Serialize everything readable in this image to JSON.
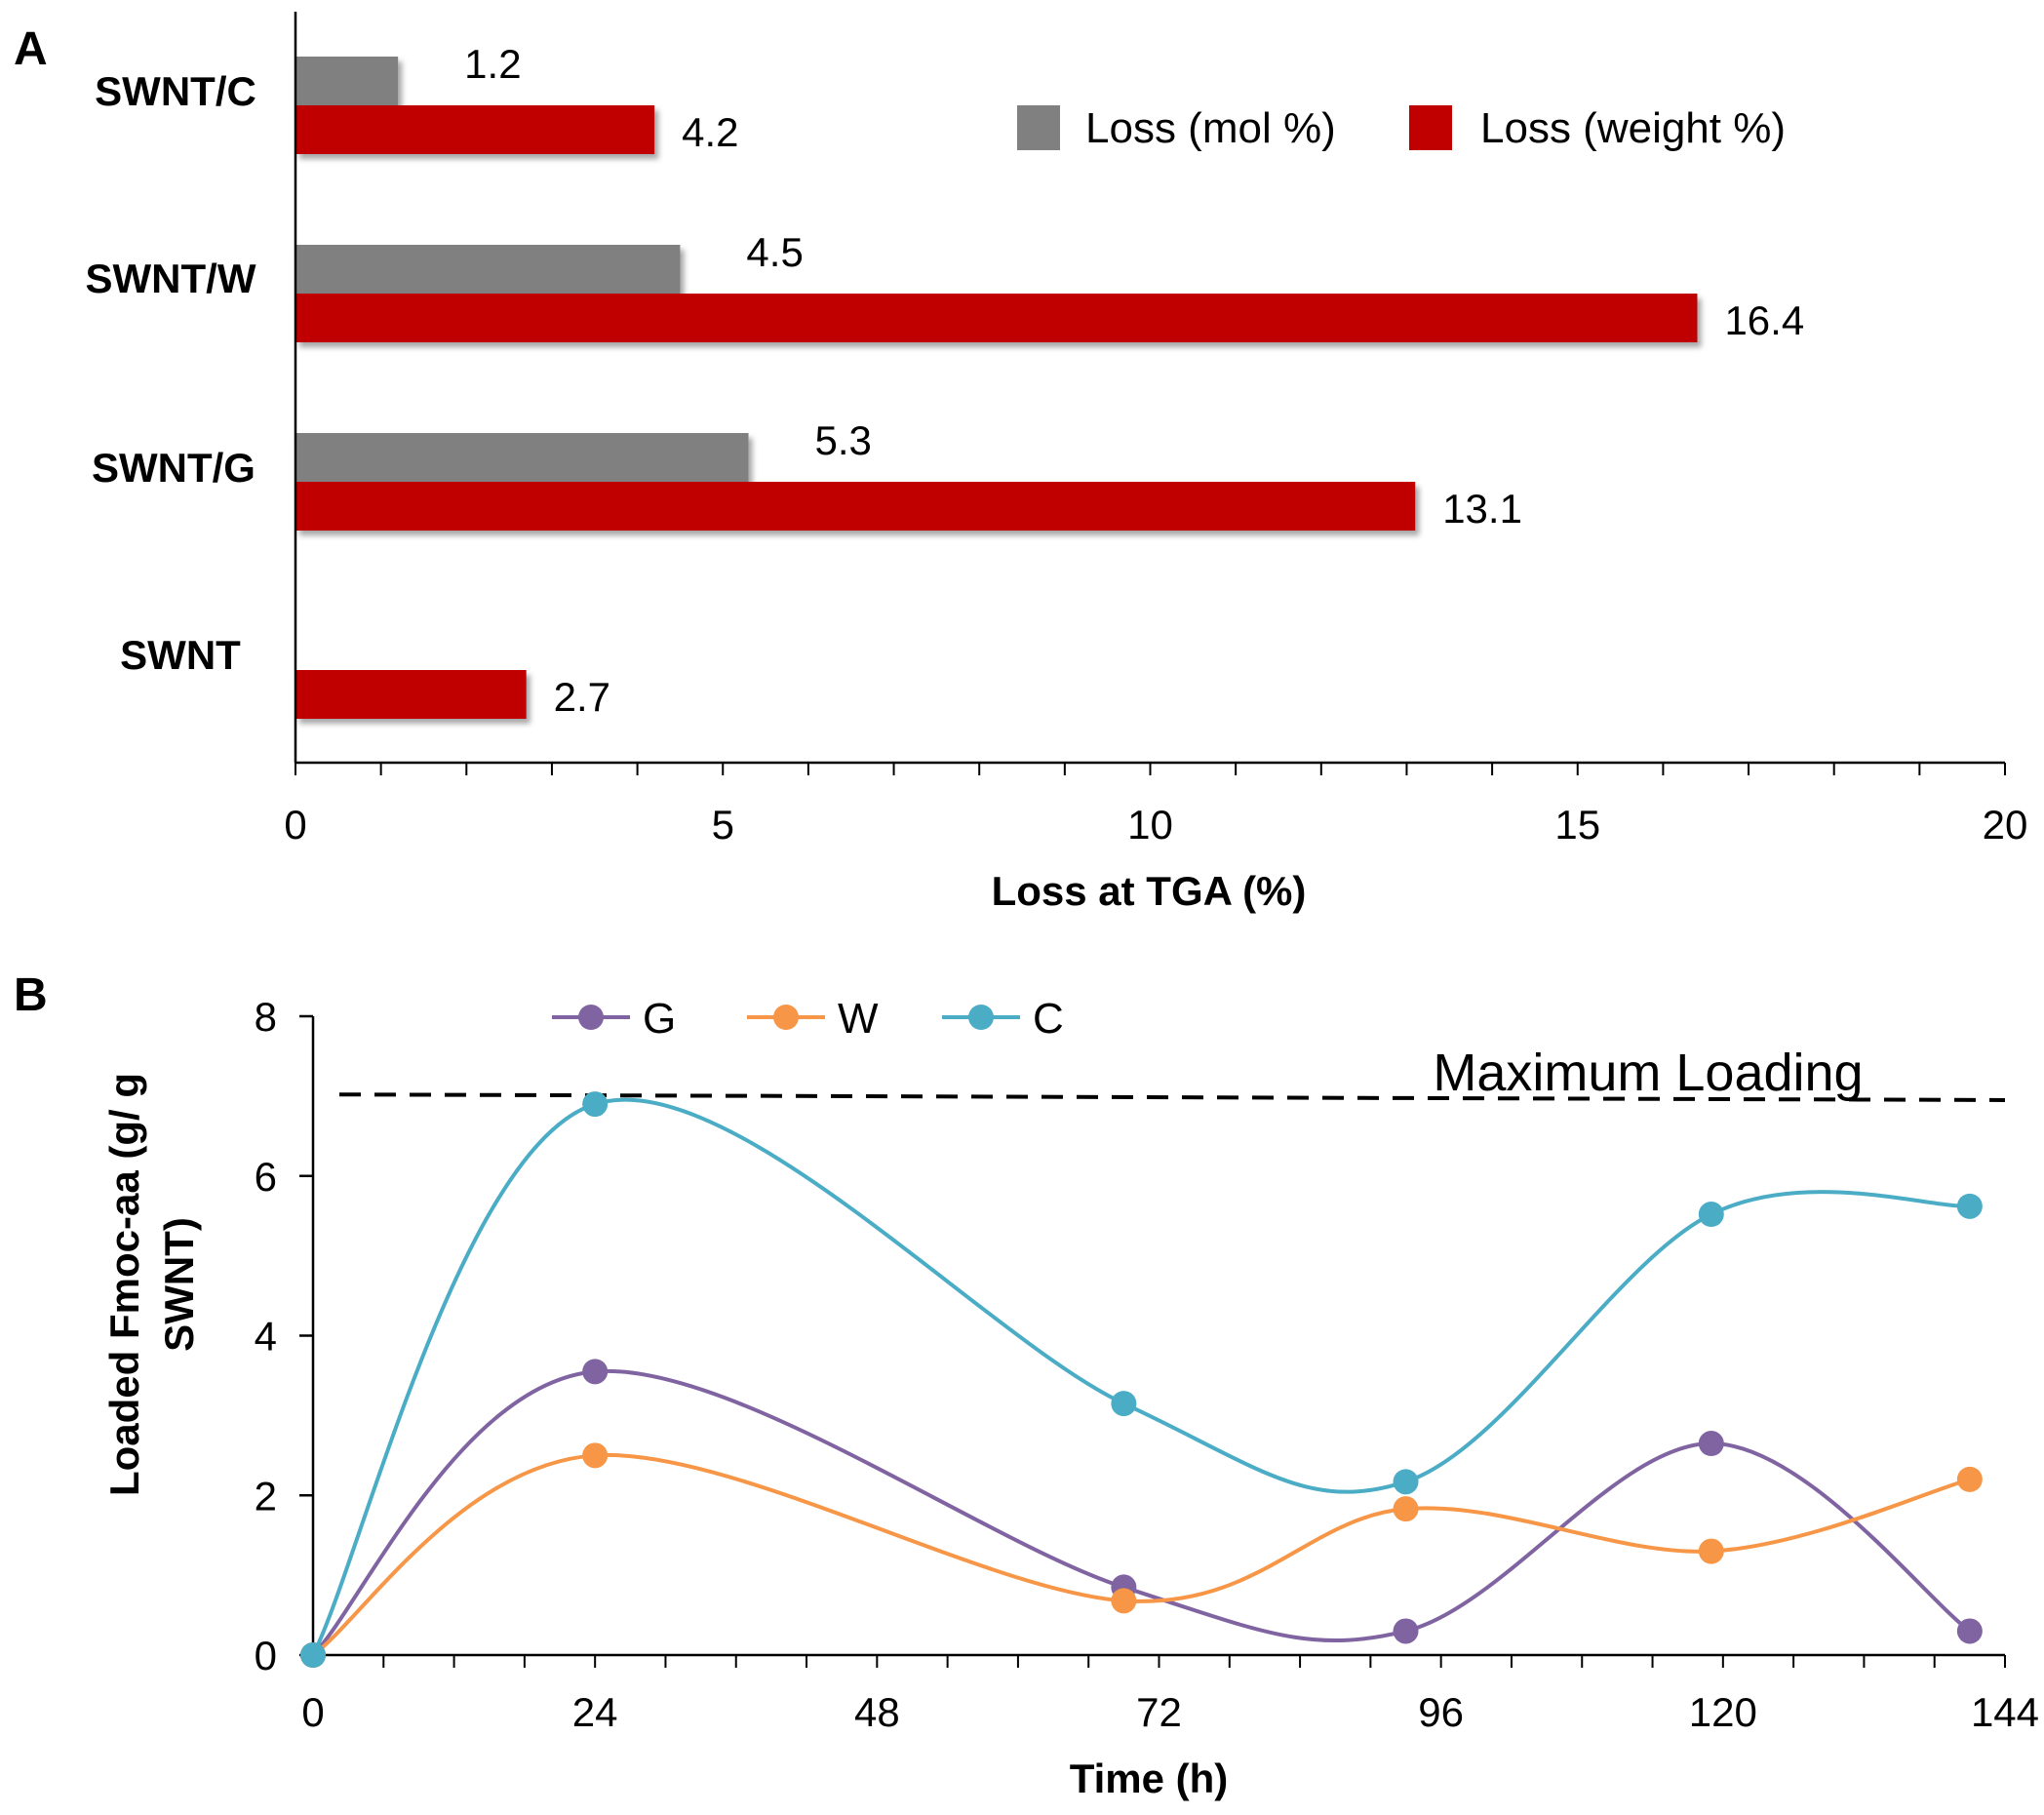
{
  "chart_data": [
    {
      "panel": "A",
      "type": "bar",
      "orientation": "horizontal",
      "categories": [
        "SWNT/C",
        "SWNT/W",
        "SWNT/G",
        "SWNT"
      ],
      "series": [
        {
          "name": "Loss (mol %)",
          "color": "#808080",
          "values": [
            1.2,
            4.5,
            5.3,
            null
          ],
          "labels": [
            "1.2",
            "4.5",
            "5.3",
            ""
          ]
        },
        {
          "name": "Loss (weight %)",
          "color": "#C00000",
          "values": [
            4.2,
            16.4,
            13.1,
            2.7
          ],
          "labels": [
            "4.2",
            "16.4",
            "13.1",
            "2.7"
          ]
        }
      ],
      "xlabel": "Loss at TGA (%)",
      "xlim": [
        0,
        20
      ],
      "xticks": [
        0,
        5,
        10,
        15,
        20
      ],
      "xtick_labels": [
        "0",
        "5",
        "10",
        "15",
        "20"
      ],
      "grid": false,
      "legend": "top-right"
    },
    {
      "panel": "B",
      "type": "line",
      "smooth": true,
      "x": [
        0,
        24,
        69,
        93,
        119,
        141
      ],
      "series": [
        {
          "name": "G",
          "color": "#8064A2",
          "values": [
            0,
            3.55,
            0.85,
            0.3,
            2.65,
            0.3
          ]
        },
        {
          "name": "W",
          "color": "#F79646",
          "values": [
            0,
            2.5,
            0.68,
            1.83,
            1.3,
            2.2
          ]
        },
        {
          "name": "C",
          "color": "#4BACC6",
          "values": [
            0,
            6.9,
            3.15,
            2.17,
            5.52,
            5.62
          ]
        }
      ],
      "reference_line": {
        "label": "Maximum Loading",
        "y_start": 7.02,
        "y_end": 6.95,
        "style": "dashed"
      },
      "xlabel": "Time (h)",
      "ylabel": "Loaded Fmoc-aa (g/ g SWNT)",
      "ylabel_lines": [
        "Loaded Fmoc-aa (g/ g",
        "SWNT)"
      ],
      "xlim": [
        0,
        144
      ],
      "ylim": [
        0,
        8
      ],
      "xticks": [
        0,
        24,
        48,
        72,
        96,
        120,
        144
      ],
      "xtick_labels": [
        "0",
        "24",
        "48",
        "72",
        "96",
        "120",
        "144"
      ],
      "yticks": [
        0,
        2,
        4,
        6,
        8
      ],
      "ytick_labels": [
        "0",
        "2",
        "4",
        "6",
        "8"
      ],
      "grid": false,
      "legend": "top-left"
    }
  ]
}
